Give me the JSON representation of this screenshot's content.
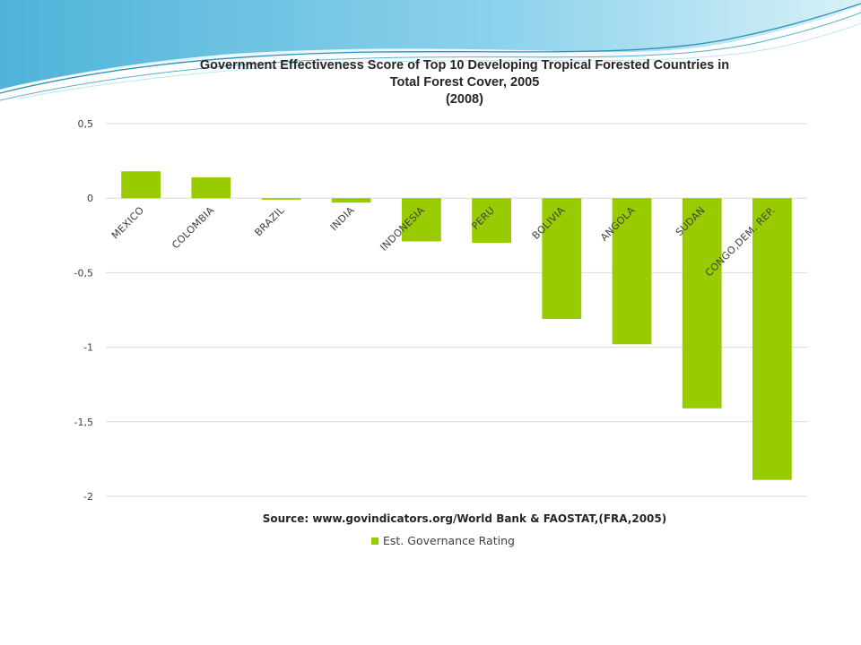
{
  "colors": {
    "bar": "#99cc00",
    "grid": "#d9d9d9",
    "tick_text": "#404040",
    "wave_dark": "#2e8fb8",
    "wave_light": "#bfe6f2"
  },
  "chart_data": {
    "type": "bar",
    "title_lines": [
      "Government Effectiveness Score of Top 10 Developing Tropical Forested Countries in",
      "Total Forest Cover, 2005",
      "(2008)"
    ],
    "xlabel": "Source: www.govindicators.org/World   Bank & FAOSTAT,(FRA,2005)",
    "ylabel": "",
    "categories": [
      "MEXICO",
      "COLOMBIA",
      "BRAZIL",
      "INDIA",
      "INDONESIA",
      "PERU",
      "BOLIVIA",
      "ANGOLA",
      "SUDAN",
      "CONGO,DEM. REP."
    ],
    "series": [
      {
        "name": "Est. Governance Rating",
        "values": [
          0.18,
          0.14,
          -0.01,
          -0.03,
          -0.29,
          -0.3,
          -0.81,
          -0.98,
          -1.41,
          -1.89
        ]
      }
    ],
    "ylim": [
      -2,
      0.5
    ],
    "yticks": [
      0.5,
      0,
      -0.5,
      -1,
      -1.5,
      -2
    ],
    "ytick_labels": [
      "0,5",
      "0",
      "-0,5",
      "-1",
      "-1,5",
      "-2"
    ],
    "grid": true,
    "legend_position": "bottom"
  }
}
